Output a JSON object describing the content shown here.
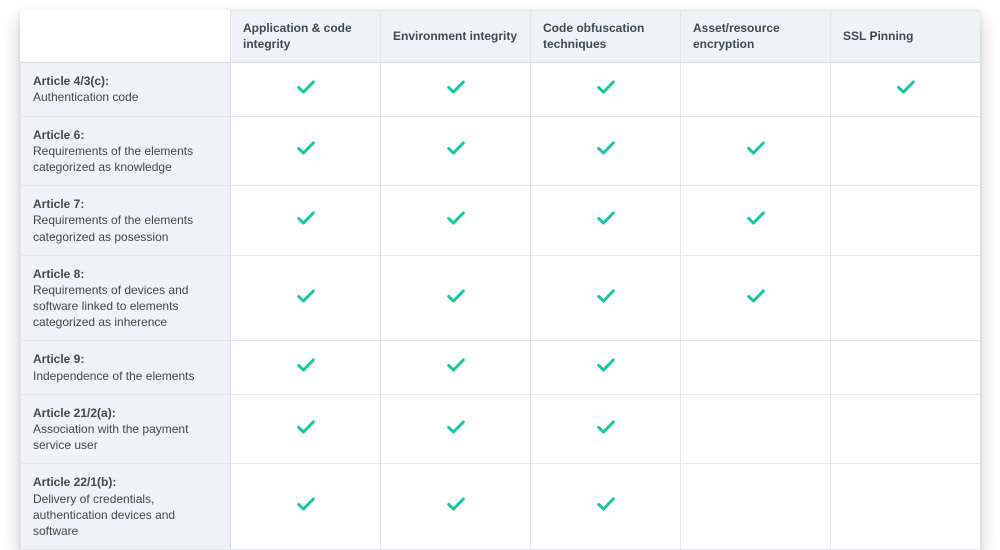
{
  "table": {
    "check_color": "#17c9a1",
    "header_bg": "#eef3f5",
    "header_fg": "#3e4b52",
    "border_color": "#e2e7ea",
    "columns": [
      "Application & code integrity",
      "Environment integrity",
      "Code obfuscation techniques",
      "Asset/resource encryption",
      "SSL Pinning"
    ],
    "rows": [
      {
        "title": "Article 4/3(c):",
        "desc": "Authentication code",
        "cells": [
          true,
          true,
          true,
          false,
          true
        ]
      },
      {
        "title": "Article 6:",
        "desc": "Requirements of the elements categorized as knowledge",
        "cells": [
          true,
          true,
          true,
          true,
          false
        ]
      },
      {
        "title": "Article 7:",
        "desc": "Requirements of the elements categorized as posession",
        "cells": [
          true,
          true,
          true,
          true,
          false
        ]
      },
      {
        "title": "Article 8:",
        "desc": "Requirements of devices and software linked to elements categorized as inherence",
        "cells": [
          true,
          true,
          true,
          true,
          false
        ]
      },
      {
        "title": "Article 9:",
        "desc": "Independence of the elements",
        "cells": [
          true,
          true,
          true,
          false,
          false
        ]
      },
      {
        "title": "Article 21/2(a):",
        "desc": "Association with the payment service user",
        "cells": [
          true,
          true,
          true,
          false,
          false
        ]
      },
      {
        "title": "Article 22/1(b):",
        "desc": "Delivery of credentials, authentication devices and software",
        "cells": [
          true,
          true,
          true,
          false,
          false
        ]
      }
    ]
  }
}
